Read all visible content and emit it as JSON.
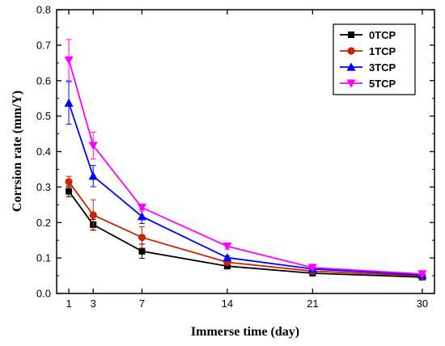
{
  "chart_data": {
    "type": "line",
    "title": "",
    "xlabel": "Immerse time (day)",
    "ylabel": "Corrsion rate (mm/Y)",
    "x": [
      1,
      3,
      7,
      14,
      21,
      30
    ],
    "xticks": [
      "1",
      "3",
      "7",
      "14",
      "21",
      "30"
    ],
    "xlim": [
      0,
      31
    ],
    "ylim": [
      0.0,
      0.8
    ],
    "yticks": [
      "0.0",
      "0.1",
      "0.2",
      "0.3",
      "0.4",
      "0.5",
      "0.6",
      "0.7",
      "0.8"
    ],
    "grid": false,
    "legend_position": "top-right",
    "series": [
      {
        "name": "0TCP",
        "color": "#000000",
        "marker": "square",
        "values": [
          0.288,
          0.194,
          0.119,
          0.077,
          0.057,
          0.046
        ],
        "errors": [
          0.015,
          0.015,
          0.02,
          0.005,
          0.005,
          0.005
        ]
      },
      {
        "name": "1TCP",
        "color": "#cc2200",
        "marker": "circle",
        "values": [
          0.315,
          0.221,
          0.158,
          0.088,
          0.063,
          0.049
        ],
        "errors": [
          0.015,
          0.043,
          0.03,
          0.008,
          0.005,
          0.005
        ]
      },
      {
        "name": "3TCP",
        "color": "#0000ff",
        "marker": "triangle-up",
        "values": [
          0.537,
          0.331,
          0.217,
          0.101,
          0.069,
          0.052
        ],
        "errors": [
          0.06,
          0.03,
          0.02,
          0.005,
          0.005,
          0.005
        ]
      },
      {
        "name": "5TCP",
        "color": "#ff00ff",
        "marker": "triangle-down",
        "values": [
          0.658,
          0.417,
          0.242,
          0.133,
          0.073,
          0.055
        ],
        "errors": [
          0.058,
          0.038,
          0.01,
          0.008,
          0.005,
          0.005
        ]
      }
    ]
  }
}
